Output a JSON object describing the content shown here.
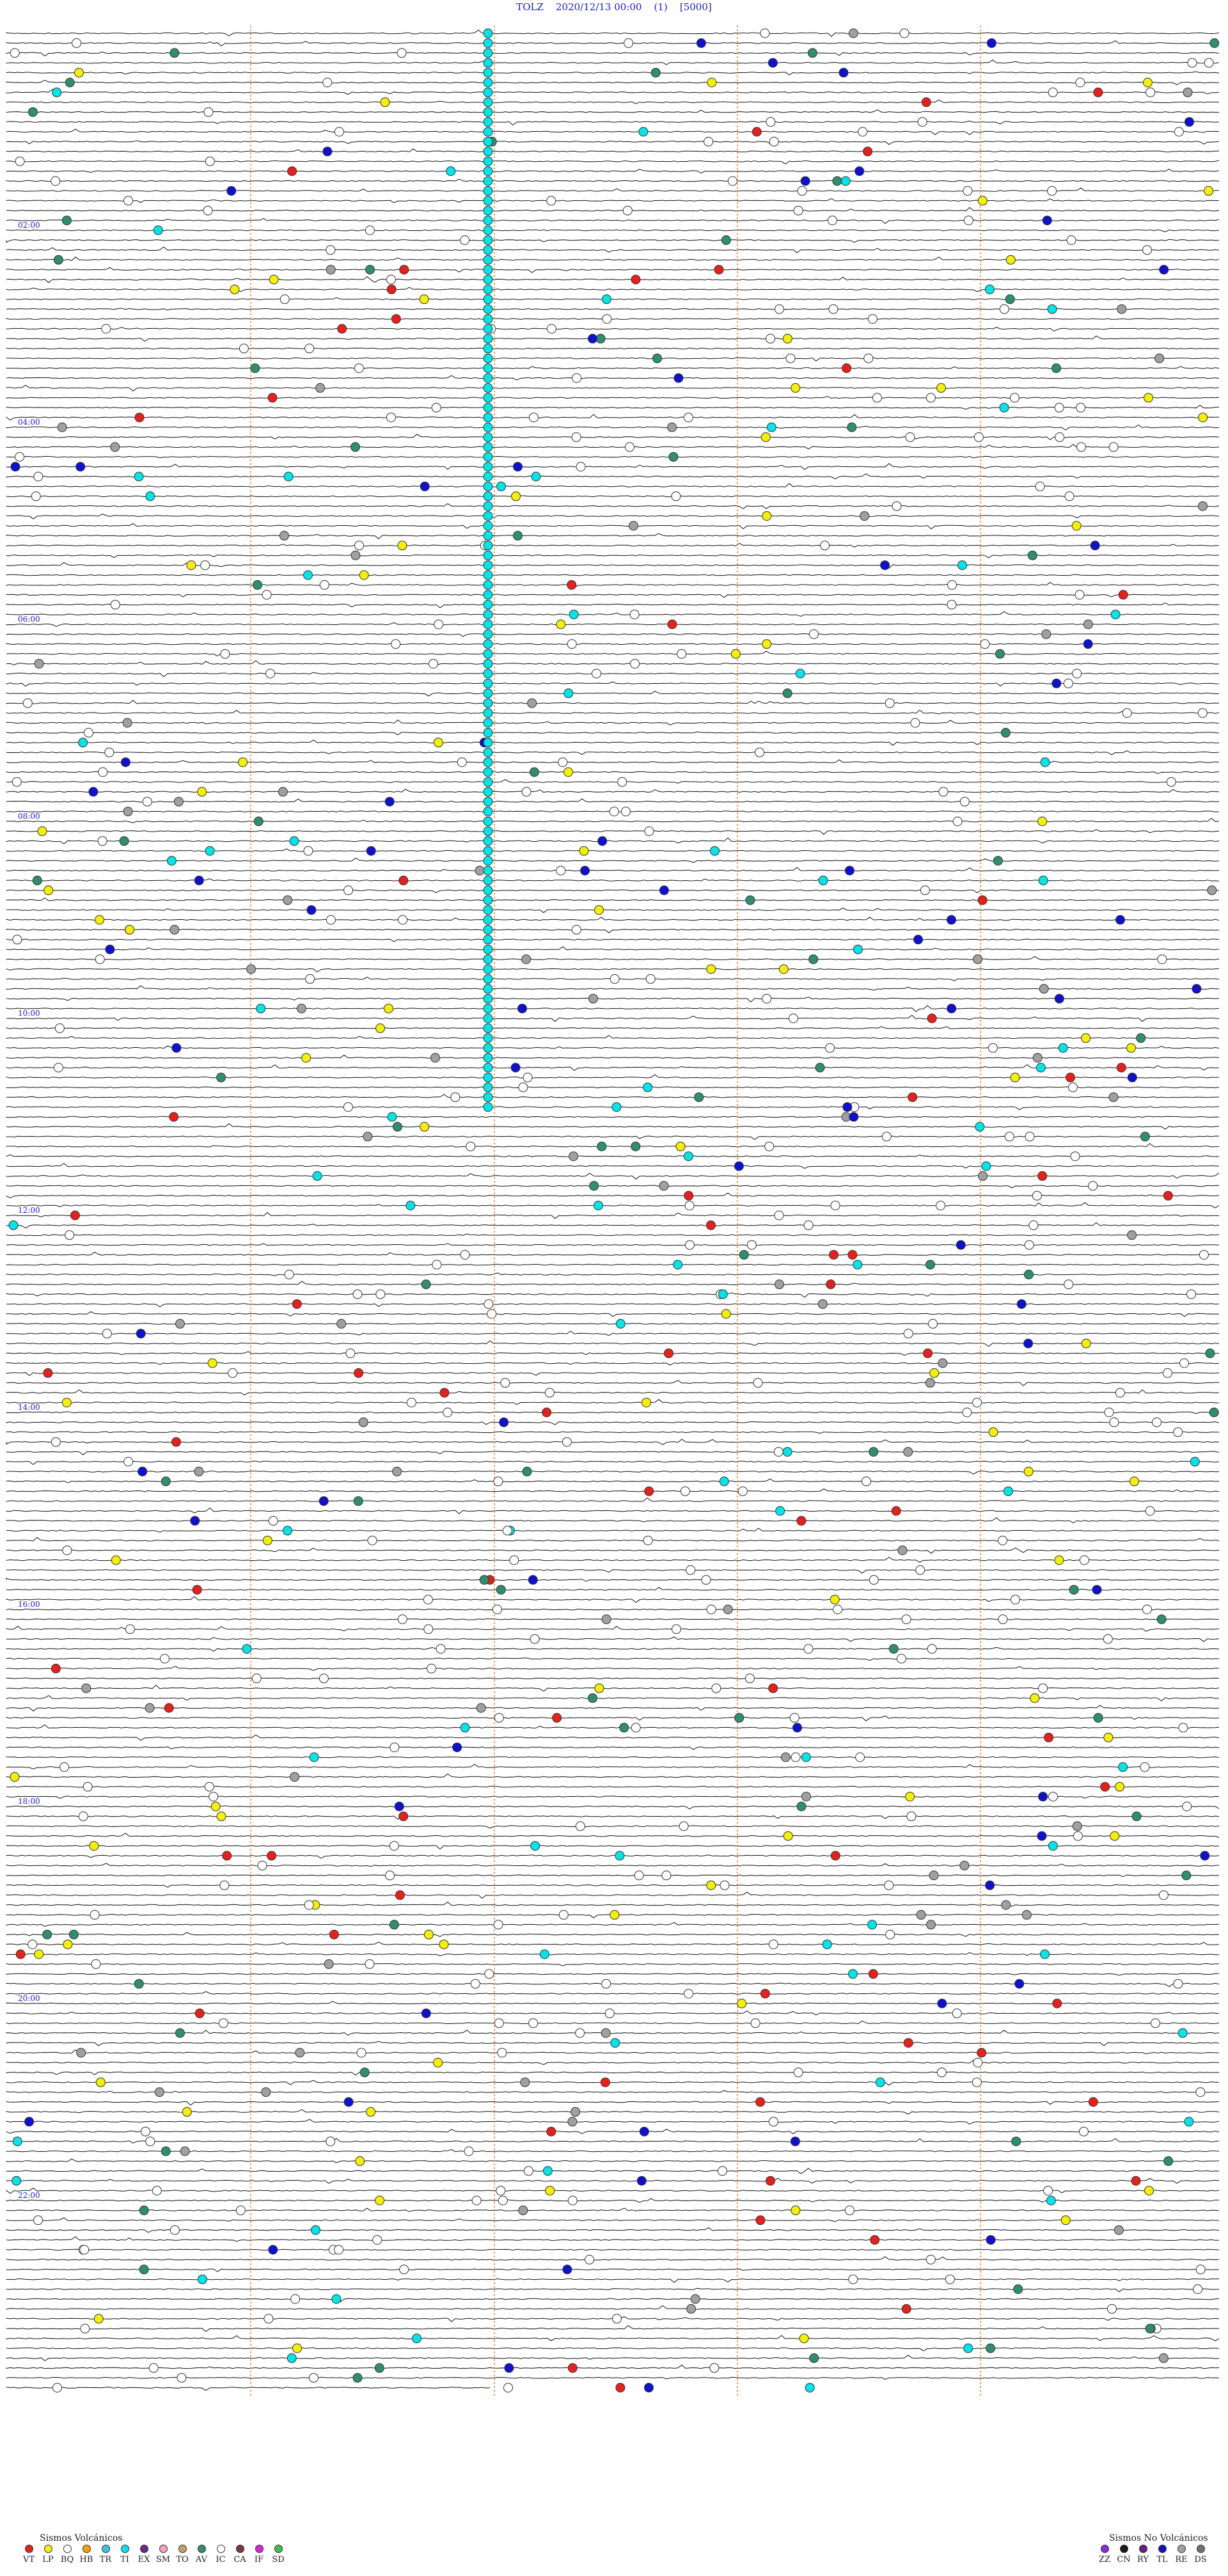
{
  "header": {
    "station": "TOLZ",
    "datetime": "2020/12/13 00:00",
    "component": "(1)",
    "scale": "[5000]"
  },
  "hour_labels": [
    "02:00",
    "04:00",
    "06:00",
    "08:00",
    "10:00",
    "12:00",
    "14:00",
    "16:00",
    "18:00",
    "20:00",
    "22:00"
  ],
  "legend_volcanic": {
    "title": "Sismos Volcánicos",
    "items": [
      {
        "code": "VT",
        "color": "#e8201c"
      },
      {
        "code": "LP",
        "color": "#f4f000"
      },
      {
        "code": "BQ",
        "color": "#ffffff"
      },
      {
        "code": "HB",
        "color": "#f5a000"
      },
      {
        "code": "TR",
        "color": "#3cbfe0"
      },
      {
        "code": "TI",
        "color": "#00e5e8"
      },
      {
        "code": "EX",
        "color": "#6a2a8c"
      },
      {
        "code": "SM",
        "color": "#f2a0c8"
      },
      {
        "code": "TO",
        "color": "#c8a060"
      },
      {
        "code": "AV",
        "color": "#2e8f6e"
      },
      {
        "code": "IC",
        "color": "#ffffff"
      },
      {
        "code": "CA",
        "color": "#7a3a3a"
      },
      {
        "code": "IF",
        "color": "#e020d8"
      },
      {
        "code": "SD",
        "color": "#40c040"
      }
    ]
  },
  "legend_nonvolcanic": {
    "title": "Sismos No Volcánicos",
    "items": [
      {
        "code": "ZZ",
        "color": "#8a2be2"
      },
      {
        "code": "CN",
        "color": "#1a1a1a"
      },
      {
        "code": "RY",
        "color": "#6a1a8a"
      },
      {
        "code": "TL",
        "color": "#1010d0"
      },
      {
        "code": "RE",
        "color": "#a0a0a0"
      },
      {
        "code": "DS",
        "color": "#707070"
      }
    ]
  }
}
